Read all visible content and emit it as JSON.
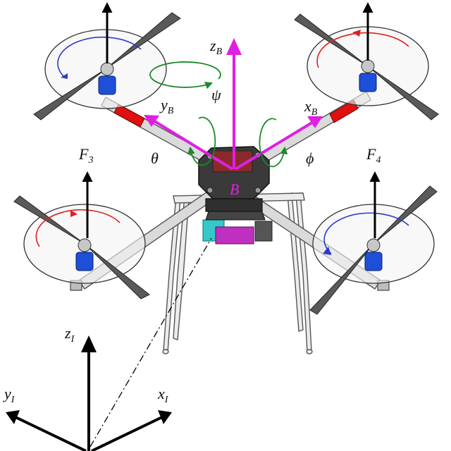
{
  "colors": {
    "body_axes": "#e01fe0",
    "rotation_arrows": "#1a8a2a",
    "spin_cw": "#e02020",
    "spin_ccw": "#2a3ad0",
    "frame": "#555555",
    "arm_fill": "#d8d8d8",
    "propeller": "#5a5a5a",
    "motor": "#1e4fd8",
    "red_tube": "#e01010",
    "camera_mount": "#36c8c8",
    "battery": "#c030c0",
    "force_arrows": "#000000"
  },
  "labels": {
    "zB": {
      "main": "z",
      "sub": "B"
    },
    "yB": {
      "main": "y",
      "sub": "B"
    },
    "xB": {
      "main": "x",
      "sub": "B"
    },
    "psi": "ψ",
    "theta": "θ",
    "phi": "ϕ",
    "body_origin": "B",
    "F3": {
      "main": "F",
      "sub": "3"
    },
    "F4": {
      "main": "F",
      "sub": "4"
    },
    "zI": {
      "main": "z",
      "sub": "I"
    },
    "yI": {
      "main": "y",
      "sub": "I"
    },
    "xI": {
      "main": "x",
      "sub": "I"
    }
  }
}
